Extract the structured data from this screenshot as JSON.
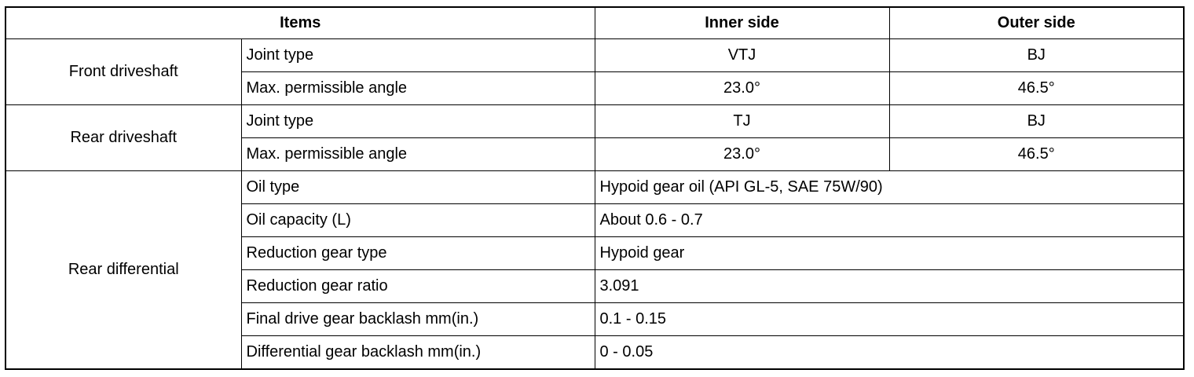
{
  "table": {
    "header": [
      "Items",
      "Inner side",
      "Outer side"
    ],
    "groups": [
      {
        "label": "Front driveshaft",
        "rows": [
          [
            "Joint type",
            "VTJ",
            "BJ"
          ],
          [
            "Max. permissible angle",
            "23.0°",
            "46.5°"
          ]
        ]
      },
      {
        "label": "Rear driveshaft",
        "rows": [
          [
            "Joint type",
            "TJ",
            "BJ"
          ],
          [
            "Max. permissible angle",
            "23.0°",
            "46.5°"
          ]
        ]
      },
      {
        "label": "Rear differential",
        "rows": [
          [
            "Oil type",
            "Hypoid gear oil (API GL-5, SAE 75W/90)"
          ],
          [
            "Oil capacity (L)",
            "About 0.6 - 0.7"
          ],
          [
            "Reduction gear type",
            "Hypoid gear"
          ],
          [
            "Reduction gear ratio",
            "3.091"
          ],
          [
            "Final drive gear backlash mm(in.)",
            "0.1 - 0.15"
          ],
          [
            "Differential gear backlash mm(in.)",
            "0 - 0.05"
          ]
        ]
      }
    ]
  }
}
